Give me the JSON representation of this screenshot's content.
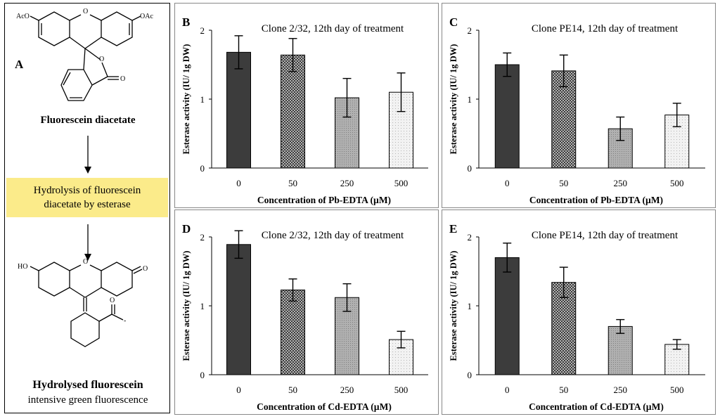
{
  "panel_a": {
    "letter": "A",
    "substrate": {
      "name": "Fluorescein diacetate",
      "groups": {
        "left": "AcO",
        "right": "OAc",
        "ring_o": "O",
        "lactone_o": "O",
        "carbonyl_o": "O"
      }
    },
    "reaction": "Hydrolysis of fluorescein diacetate by esterase",
    "reaction_lines": [
      "Hydrolysis of fluorescein",
      "diacetate by esterase"
    ],
    "product": {
      "name": "Hydrolysed fluorescein",
      "subtitle": "intensive green fluorescence",
      "groups": {
        "left": "HO",
        "ring_o": "O",
        "keto_o": "O",
        "carboxylate": "O",
        "carboxylate_minus": "-"
      }
    }
  },
  "bar_patterns": [
    "solid-dark",
    "crosshatch",
    "gray-dots",
    "light-dots"
  ],
  "colors": {
    "bar0": "#3c3c3c",
    "bar1": "#555555",
    "bar2": "#b0b0b0",
    "bar3": "#f2f2f2",
    "highlight": "#fbeb8a"
  },
  "chart_data": [
    {
      "panel": "B",
      "type": "bar",
      "title": "Clone 2/32, 12th day of treatment",
      "xlabel": "Concentration of Pb-EDTA (µM)",
      "ylabel": "Esterase activity (IU/ 1g DW)",
      "categories": [
        "0",
        "50",
        "250",
        "500"
      ],
      "values": [
        1.68,
        1.64,
        1.02,
        1.1
      ],
      "errors": [
        0.24,
        0.24,
        0.28,
        0.28
      ],
      "ylim": [
        0,
        2
      ],
      "yticks": [
        "0",
        "1",
        "2"
      ]
    },
    {
      "panel": "C",
      "type": "bar",
      "title": "Clone PE14, 12th day of treatment",
      "xlabel": "Concentration of Pb-EDTA (µM)",
      "ylabel": "Esterase activity (IU/ 1g DW)",
      "categories": [
        "0",
        "50",
        "250",
        "500"
      ],
      "values": [
        1.5,
        1.41,
        0.57,
        0.77
      ],
      "errors": [
        0.17,
        0.23,
        0.17,
        0.17
      ],
      "ylim": [
        0,
        2
      ],
      "yticks": [
        "0",
        "1",
        "2"
      ]
    },
    {
      "panel": "D",
      "type": "bar",
      "title": "Clone 2/32, 12th day of treatment",
      "xlabel": "Concentration of Cd-EDTA (µM)",
      "ylabel": "Esterase activity (IU/ 1g DW)",
      "categories": [
        "0",
        "50",
        "250",
        "500"
      ],
      "values": [
        1.89,
        1.23,
        1.12,
        0.51
      ],
      "errors": [
        0.2,
        0.16,
        0.2,
        0.12
      ],
      "ylim": [
        0,
        2
      ],
      "yticks": [
        "0",
        "1",
        "2"
      ]
    },
    {
      "panel": "E",
      "type": "bar",
      "title": "Clone PE14, 12th day of treatment",
      "xlabel": "Concentration of Cd-EDTA (µM)",
      "ylabel": "Esterase activity (IU/ 1g DW)",
      "categories": [
        "0",
        "50",
        "250",
        "500"
      ],
      "values": [
        1.7,
        1.34,
        0.7,
        0.44
      ],
      "errors": [
        0.21,
        0.22,
        0.1,
        0.07
      ],
      "ylim": [
        0,
        2
      ],
      "yticks": [
        "0",
        "1",
        "2"
      ]
    }
  ]
}
